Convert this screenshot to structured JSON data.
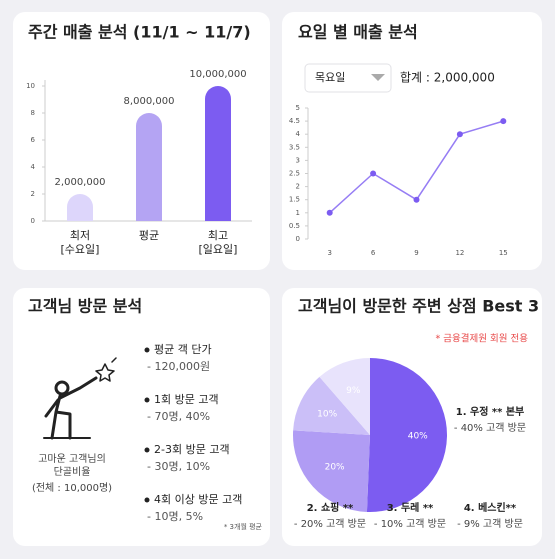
{
  "chart_data": [
    {
      "type": "bar",
      "title": "주간 매출 분석 (11/1 ~ 11/7)",
      "categories": [
        "최저",
        "평균",
        "최고"
      ],
      "sublabels": [
        "[수요일]",
        null,
        "[일요일]"
      ],
      "values": [
        2,
        8,
        10
      ],
      "value_labels": [
        "2,000,000",
        "8,000,000",
        "10,000,000"
      ],
      "colors": [
        "#ddd6fb",
        "#b4a4f3",
        "#7c5cf1"
      ],
      "ylim": [
        0,
        10
      ],
      "yticks": [
        0,
        2,
        4,
        6,
        8,
        10
      ]
    },
    {
      "type": "line",
      "title": "요일 별 매출 분석",
      "dropdown": "목요일",
      "total_label": "합계 : 2,000,000",
      "x": [
        3,
        6,
        9,
        12,
        15
      ],
      "values": [
        1,
        2.5,
        1.5,
        4,
        4.5
      ],
      "color": "#7c5cf1",
      "xlim": [
        1.5,
        16.5
      ],
      "xticks": [
        3,
        6,
        9,
        12,
        15
      ],
      "ylim": [
        0,
        5
      ],
      "yticks": [
        0,
        0.5,
        1,
        1.5,
        2,
        2.5,
        3,
        3.5,
        4,
        4.5,
        5
      ]
    },
    {
      "type": "pie",
      "title": "고객님이 방문한 주변 상점 Best 3",
      "note": "* 금융결제원 회원 전용",
      "categories": [
        "1. 우정 ** 본부",
        "2. 쇼핑 **",
        "3. 두레 **",
        "4. 베스킨**"
      ],
      "descriptions": [
        "- 40% 고객 방문",
        "- 20% 고객 방문",
        "- 10% 고객 방문",
        "- 9% 고객 방문"
      ],
      "values": [
        40,
        20,
        10,
        9
      ],
      "value_labels": [
        "40%",
        "20%",
        "10%",
        "9%"
      ],
      "colors": [
        "#7c5cf1",
        "#b09cf4",
        "#cbbff8",
        "#e8e3fc"
      ]
    }
  ],
  "visit_analysis": {
    "title": "고객님 방문 분석",
    "caption": [
      "고마운 고객님의",
      "단골비율"
    ],
    "total": "(전체 : 10,000명)",
    "items": [
      [
        "평균 객 단가",
        "- 120,000원"
      ],
      [
        "1회 방문 고객",
        "- 70명, 40%"
      ],
      [
        "2-3회 방문 고객",
        "- 30명, 10%"
      ],
      [
        "4회 이상 방문 고객",
        "- 10명, 5%"
      ]
    ],
    "footnote": "* 3개월 평균"
  }
}
